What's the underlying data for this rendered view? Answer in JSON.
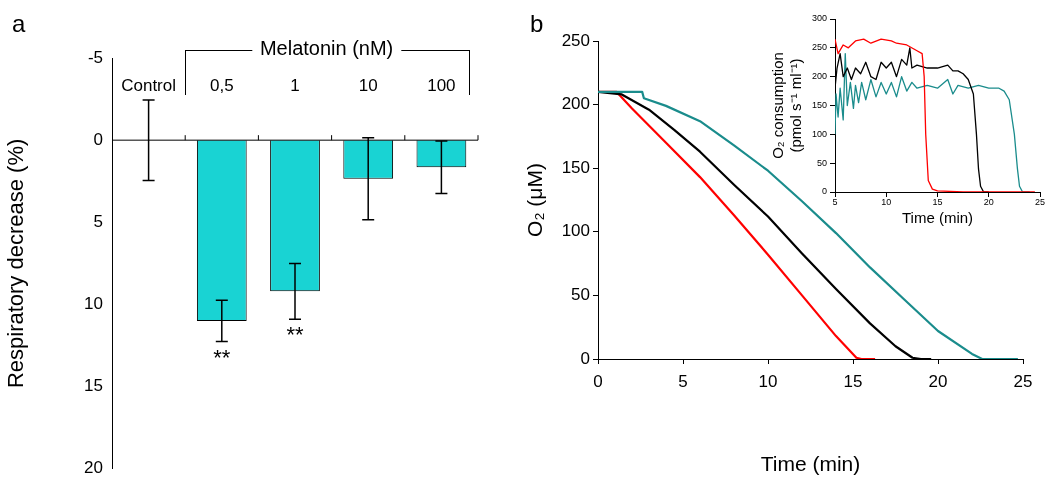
{
  "chart_data": [
    {
      "type": "bar",
      "title": "a",
      "ylabel": "Respiratory decrease (%)",
      "categories": [
        "Control",
        "0,5",
        "1",
        "10",
        "100"
      ],
      "values": [
        0,
        11.0,
        9.2,
        2.35,
        1.65
      ],
      "errors": [
        2.45,
        1.25,
        1.7,
        2.5,
        1.6
      ],
      "color": "#19d3d3",
      "ylim": [
        20,
        -5
      ],
      "yticks": [
        -5,
        0,
        5,
        10,
        15,
        20
      ],
      "annotations": [
        "Melatonin (nM)",
        "**",
        "**"
      ]
    },
    {
      "type": "line",
      "title": "b",
      "xlabel": "Time (min)",
      "ylabel": "O₂ (μM)",
      "xlim": [
        0,
        25
      ],
      "xticks": [
        0,
        5,
        10,
        15,
        20,
        25
      ],
      "ylim": [
        0,
        250
      ],
      "yticks": [
        0,
        50,
        100,
        150,
        200,
        250
      ],
      "series": [
        {
          "color": "#1a8c8c",
          "x": [
            0,
            2.6,
            2.7,
            4,
            6,
            8,
            10,
            12,
            14,
            16,
            18,
            20,
            22,
            22.6,
            24.7
          ],
          "values": [
            210,
            210,
            205,
            199,
            187,
            168,
            148,
            124,
            99,
            72,
            47,
            22,
            4,
            0,
            0
          ]
        },
        {
          "color": "#000000",
          "x": [
            0,
            1.4,
            3,
            4.5,
            6,
            8,
            10,
            12,
            14,
            16,
            17.5,
            18.5,
            19,
            19.6
          ],
          "values": [
            210,
            208,
            196,
            180,
            163,
            137,
            112,
            83,
            55,
            28,
            10,
            1,
            0,
            0
          ]
        },
        {
          "color": "#ff0000",
          "x": [
            0,
            1.1,
            2,
            4,
            6,
            8,
            10,
            12,
            14,
            15.2,
            15.5,
            16.3
          ],
          "values": [
            210,
            210,
            197,
            170,
            143,
            113,
            82,
            50,
            18,
            1,
            0,
            0
          ]
        }
      ]
    },
    {
      "type": "line",
      "xlabel": "Time (min)",
      "ylabel": "O₂ consumption\n(pmol s⁻¹ ml⁻¹)",
      "xlim": [
        5,
        25
      ],
      "xticks": [
        5,
        10,
        15,
        20,
        25
      ],
      "ylim": [
        0,
        300
      ],
      "yticks": [
        0,
        50,
        100,
        150,
        200,
        250,
        300
      ],
      "series": [
        {
          "color": "#ff0000",
          "x": [
            5,
            5.3,
            5.8,
            6.3,
            7,
            7.8,
            8.5,
            9.5,
            10.5,
            11,
            12,
            13,
            13.5,
            13.7,
            13.85,
            14.1,
            14.5,
            15,
            17.5,
            20.3,
            24.5
          ],
          "values": [
            265,
            240,
            255,
            250,
            262,
            265,
            258,
            265,
            262,
            258,
            255,
            245,
            240,
            200,
            100,
            20,
            5,
            2,
            0,
            0,
            0
          ]
        },
        {
          "color": "#000000",
          "x": [
            5,
            5.2,
            5.5,
            5.8,
            6.2,
            6.6,
            7,
            7.5,
            8,
            8.5,
            9,
            9.5,
            10,
            10.5,
            11,
            11.5,
            12,
            12.3,
            12.5,
            13,
            14,
            15,
            16,
            16.5,
            17,
            17.5,
            18,
            18.5,
            18.8,
            19,
            19.2,
            19.5,
            20
          ],
          "values": [
            180,
            215,
            240,
            200,
            215,
            195,
            215,
            205,
            225,
            200,
            195,
            225,
            215,
            225,
            200,
            230,
            220,
            250,
            215,
            220,
            215,
            215,
            220,
            210,
            210,
            205,
            195,
            170,
            100,
            40,
            10,
            0,
            0
          ]
        },
        {
          "color": "#1a8c8c",
          "x": [
            5,
            5.1,
            5.3,
            5.5,
            5.8,
            6,
            6.2,
            6.5,
            6.8,
            7,
            7.3,
            7.6,
            8,
            8.5,
            9,
            9.5,
            10,
            10.5,
            11,
            11.5,
            12,
            12.5,
            13,
            14,
            15,
            16,
            16.5,
            17,
            18,
            19,
            20,
            21,
            21.5,
            22,
            22.5,
            22.8,
            23,
            23.3,
            24
          ],
          "values": [
            100,
            170,
            130,
            180,
            125,
            240,
            150,
            190,
            145,
            185,
            155,
            190,
            160,
            195,
            165,
            190,
            170,
            190,
            165,
            200,
            175,
            190,
            180,
            185,
            180,
            195,
            170,
            185,
            180,
            185,
            180,
            180,
            175,
            160,
            100,
            40,
            10,
            0,
            0
          ]
        }
      ]
    }
  ]
}
